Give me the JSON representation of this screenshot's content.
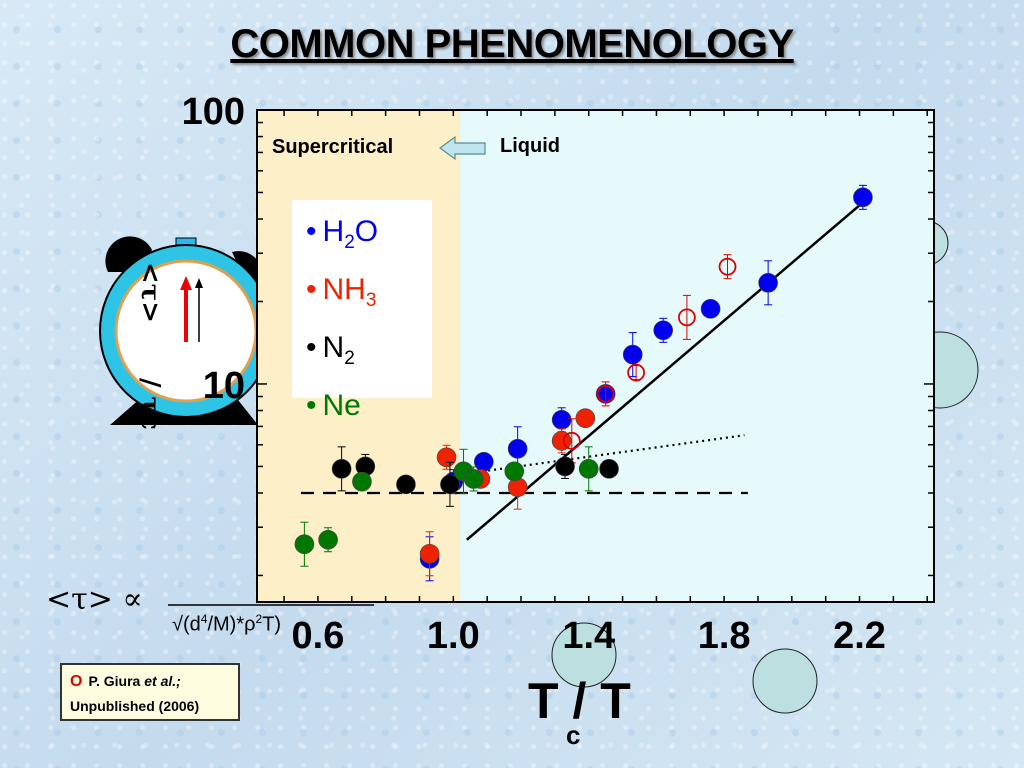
{
  "slide": {
    "title": "COMMON PHENOMENOLOGY",
    "region_labels": {
      "supercritical": "Supercritical",
      "liquid": "Liquid"
    },
    "formula": {
      "lhs": "<τ> ∝",
      "denominator_parts": [
        "√(d",
        "4",
        "/M)*ρ",
        "2",
        "T)"
      ]
    },
    "citation": {
      "marker": "O",
      "author": "P. Giura",
      "etal": "et al.;",
      "note": "Unpublished (2006)"
    },
    "clock": {
      "label_top": "<τ>",
      "label_bottom": "/ τc"
    }
  },
  "chart_data": {
    "type": "scatter",
    "xlabel": "T",
    "xlabel_sub": "c",
    "xlabel_suffix": " / T",
    "ylabel": "",
    "yscale": "log",
    "xlim": [
      0.42,
      2.42
    ],
    "ylim": [
      1.6,
      100
    ],
    "x_ticks": [
      0.6,
      1.0,
      1.4,
      1.8,
      2.2
    ],
    "x_tick_labels": [
      "0.6",
      "1.0",
      "1.4",
      "1.8",
      "2.2"
    ],
    "y_tick_labels": [
      {
        "value": 100,
        "label": "100"
      },
      {
        "value": 10,
        "label": "10"
      }
    ],
    "regions": [
      {
        "name": "supercritical",
        "x": [
          0.42,
          1.02
        ],
        "color": "#fdf0c8"
      },
      {
        "name": "liquid",
        "x": [
          1.02,
          2.42
        ],
        "color": "#e6fafc"
      }
    ],
    "series": [
      {
        "name": "H2O",
        "label_base": "H",
        "label_sub": "2",
        "label_rest": "O",
        "color": "#0000ee",
        "points": [
          [
            0.93,
            2.3
          ],
          [
            1.0,
            4.4
          ],
          [
            1.09,
            5.2
          ],
          [
            1.19,
            5.8
          ],
          [
            1.32,
            7.4
          ],
          [
            1.45,
            9.2
          ],
          [
            1.53,
            12.8
          ],
          [
            1.62,
            15.7
          ],
          [
            1.76,
            18.8
          ],
          [
            1.93,
            23.4
          ],
          [
            2.21,
            48.0
          ]
        ]
      },
      {
        "name": "NH3",
        "label_base": "NH",
        "label_sub": "3",
        "label_rest": "",
        "color": "#ee2200",
        "points": [
          [
            0.93,
            2.4
          ],
          [
            0.98,
            5.4
          ],
          [
            1.08,
            4.5
          ],
          [
            1.19,
            4.2
          ],
          [
            1.32,
            6.2
          ],
          [
            1.39,
            7.5
          ]
        ]
      },
      {
        "name": "NH3 (P. Giura et al.)",
        "label_base": "",
        "label_sub": "",
        "label_rest": "",
        "color": "#dd0000",
        "open": true,
        "points": [
          [
            1.35,
            6.2
          ],
          [
            1.45,
            9.2
          ],
          [
            1.54,
            11.0
          ],
          [
            1.69,
            17.5
          ],
          [
            1.81,
            26.8
          ]
        ]
      },
      {
        "name": "N2",
        "label_base": "N",
        "label_sub": "2",
        "label_rest": "",
        "color": "#000000",
        "points": [
          [
            0.67,
            4.9
          ],
          [
            0.74,
            5.0
          ],
          [
            0.86,
            4.3
          ],
          [
            0.99,
            4.3
          ],
          [
            1.33,
            5.0
          ],
          [
            1.46,
            4.9
          ]
        ]
      },
      {
        "name": "Ne",
        "label_base": "Ne",
        "label_sub": "",
        "label_rest": "",
        "color": "#007700",
        "points": [
          [
            0.56,
            2.6
          ],
          [
            0.63,
            2.7
          ],
          [
            0.73,
            4.4
          ],
          [
            1.03,
            4.8
          ],
          [
            1.06,
            4.5
          ],
          [
            1.18,
            4.8
          ],
          [
            1.4,
            4.9
          ]
        ]
      }
    ],
    "fit_lines": [
      {
        "style": "solid",
        "points": [
          [
            1.04,
            2.7
          ],
          [
            2.21,
            46.0
          ]
        ]
      },
      {
        "style": "dotted",
        "points": [
          [
            0.98,
            4.6
          ],
          [
            1.86,
            6.5
          ]
        ]
      },
      {
        "style": "dashed",
        "points": [
          [
            0.55,
            4.0
          ],
          [
            1.87,
            4.0
          ]
        ]
      }
    ]
  }
}
